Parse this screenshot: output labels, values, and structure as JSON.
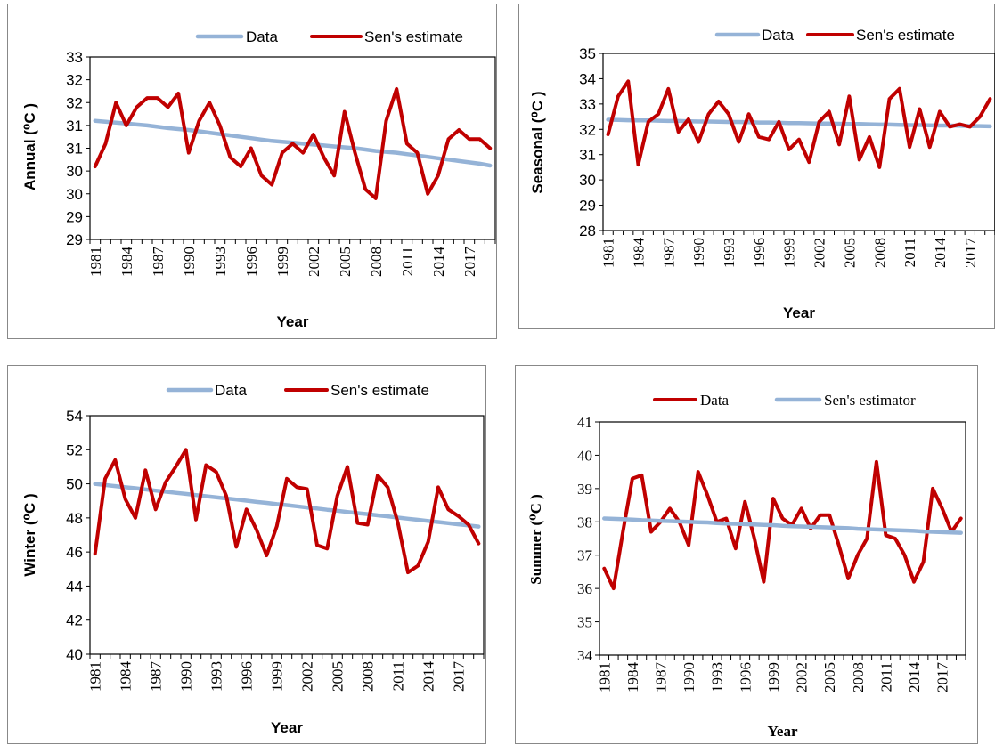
{
  "chart_data": [
    {
      "type": "line",
      "font": "sans",
      "x": [
        1981,
        1982,
        1983,
        1984,
        1985,
        1986,
        1987,
        1988,
        1989,
        1990,
        1991,
        1992,
        1993,
        1994,
        1995,
        1996,
        1997,
        1998,
        1999,
        2000,
        2001,
        2002,
        2003,
        2004,
        2005,
        2006,
        2007,
        2008,
        2009,
        2010,
        2011,
        2012,
        2013,
        2014,
        2015,
        2016,
        2017,
        2018,
        2019
      ],
      "xticks": [
        "1981",
        "1984",
        "1987",
        "1990",
        "1993",
        "1996",
        "1999",
        "2002",
        "2005",
        "2008",
        "2011",
        "2014",
        "2017"
      ],
      "xlabel": "Year",
      "ylabel": "Annual (⁰C )",
      "yticks": [
        "29",
        "29",
        "30",
        "30",
        "31",
        "31",
        "32",
        "32",
        "33"
      ],
      "ylim": [
        29,
        33
      ],
      "grid": false,
      "legend_position": "top",
      "series": [
        {
          "name": "Data",
          "color": "#95b3d7",
          "values": [
            31.6,
            31.58,
            31.56,
            31.54,
            31.52,
            31.5,
            31.47,
            31.44,
            31.42,
            31.4,
            31.37,
            31.34,
            31.31,
            31.28,
            31.25,
            31.22,
            31.19,
            31.16,
            31.14,
            31.12,
            31.1,
            31.08,
            31.06,
            31.04,
            31.02,
            31.0,
            30.97,
            30.94,
            30.92,
            30.9,
            30.87,
            30.84,
            30.81,
            30.78,
            30.75,
            30.72,
            30.69,
            30.66,
            30.62
          ]
        },
        {
          "name": "Sen's estimate",
          "color": "#c00000",
          "values": [
            30.6,
            31.1,
            32.0,
            31.5,
            31.9,
            32.1,
            32.1,
            31.9,
            32.2,
            30.9,
            31.6,
            32.0,
            31.5,
            30.8,
            30.6,
            31.0,
            30.4,
            30.2,
            30.9,
            31.1,
            30.9,
            31.3,
            30.8,
            30.4,
            31.8,
            30.9,
            30.1,
            29.9,
            31.6,
            32.3,
            31.1,
            30.9,
            30.0,
            30.4,
            31.2,
            31.4,
            31.2,
            31.2,
            31.0
          ]
        }
      ]
    },
    {
      "type": "line",
      "font": "sans",
      "x": [
        1981,
        1982,
        1983,
        1984,
        1985,
        1986,
        1987,
        1988,
        1989,
        1990,
        1991,
        1992,
        1993,
        1994,
        1995,
        1996,
        1997,
        1998,
        1999,
        2000,
        2001,
        2002,
        2003,
        2004,
        2005,
        2006,
        2007,
        2008,
        2009,
        2010,
        2011,
        2012,
        2013,
        2014,
        2015,
        2016,
        2017,
        2018,
        2019
      ],
      "xticks": [
        "1981",
        "1984",
        "1987",
        "1990",
        "1993",
        "1996",
        "1999",
        "2002",
        "2005",
        "2008",
        "2011",
        "2014",
        "2017"
      ],
      "xlabel": "Year",
      "ylabel": "Seasonal (⁰C )",
      "yticks": [
        "28",
        "29",
        "30",
        "31",
        "32",
        "33",
        "34",
        "35"
      ],
      "ylim": [
        28,
        35
      ],
      "grid": false,
      "legend_position": "top",
      "series": [
        {
          "name": "Data",
          "color": "#95b3d7",
          "values": [
            32.38,
            32.37,
            32.36,
            32.35,
            32.35,
            32.34,
            32.33,
            32.33,
            32.32,
            32.31,
            32.31,
            32.3,
            32.29,
            32.29,
            32.28,
            32.27,
            32.27,
            32.26,
            32.25,
            32.25,
            32.24,
            32.23,
            32.23,
            32.22,
            32.21,
            32.21,
            32.2,
            32.19,
            32.19,
            32.18,
            32.17,
            32.17,
            32.16,
            32.15,
            32.15,
            32.14,
            32.13,
            32.13,
            32.12
          ]
        },
        {
          "name": "Sen's estimate",
          "color": "#c00000",
          "values": [
            31.8,
            33.3,
            33.9,
            30.6,
            32.3,
            32.6,
            33.6,
            31.9,
            32.4,
            31.5,
            32.6,
            33.1,
            32.6,
            31.5,
            32.6,
            31.7,
            31.6,
            32.3,
            31.2,
            31.6,
            30.7,
            32.3,
            32.7,
            31.4,
            33.3,
            30.8,
            31.7,
            30.5,
            33.2,
            33.6,
            31.3,
            32.8,
            31.3,
            32.7,
            32.1,
            32.2,
            32.1,
            32.5,
            33.2
          ]
        }
      ]
    },
    {
      "type": "line",
      "font": "sans",
      "x": [
        1981,
        1982,
        1983,
        1984,
        1985,
        1986,
        1987,
        1988,
        1989,
        1990,
        1991,
        1992,
        1993,
        1994,
        1995,
        1996,
        1997,
        1998,
        1999,
        2000,
        2001,
        2002,
        2003,
        2004,
        2005,
        2006,
        2007,
        2008,
        2009,
        2010,
        2011,
        2012,
        2013,
        2014,
        2015,
        2016,
        2017,
        2018,
        2019
      ],
      "xticks": [
        "1981",
        "1984",
        "1987",
        "1990",
        "1993",
        "1996",
        "1999",
        "2002",
        "2005",
        "2008",
        "2011",
        "2014",
        "2017"
      ],
      "xlabel": "Year",
      "ylabel": "Winter (⁰C )",
      "yticks": [
        "40",
        "42",
        "44",
        "46",
        "48",
        "50",
        "52",
        "54"
      ],
      "ylim": [
        40,
        54
      ],
      "grid": false,
      "legend_position": "top",
      "series": [
        {
          "name": "Data",
          "color": "#95b3d7",
          "values": [
            50.0,
            49.93,
            49.87,
            49.8,
            49.74,
            49.67,
            49.6,
            49.54,
            49.47,
            49.41,
            49.34,
            49.27,
            49.21,
            49.14,
            49.08,
            49.01,
            48.94,
            48.88,
            48.81,
            48.75,
            48.68,
            48.61,
            48.55,
            48.48,
            48.42,
            48.35,
            48.28,
            48.22,
            48.15,
            48.09,
            48.02,
            47.95,
            47.89,
            47.82,
            47.76,
            47.69,
            47.62,
            47.56,
            47.49
          ]
        },
        {
          "name": "Sen's estimate",
          "color": "#c00000",
          "values": [
            45.9,
            50.3,
            51.4,
            49.1,
            48.0,
            50.8,
            48.5,
            50.1,
            51.0,
            52.0,
            47.9,
            51.1,
            50.7,
            49.3,
            46.3,
            48.5,
            47.3,
            45.8,
            47.5,
            50.3,
            49.8,
            49.7,
            46.4,
            46.2,
            49.3,
            51.0,
            47.7,
            47.6,
            50.5,
            49.8,
            47.7,
            44.8,
            45.2,
            46.6,
            49.8,
            48.5,
            48.1,
            47.6,
            46.5
          ]
        }
      ]
    },
    {
      "type": "line",
      "font": "serif",
      "x": [
        1981,
        1982,
        1983,
        1984,
        1985,
        1986,
        1987,
        1988,
        1989,
        1990,
        1991,
        1992,
        1993,
        1994,
        1995,
        1996,
        1997,
        1998,
        1999,
        2000,
        2001,
        2002,
        2003,
        2004,
        2005,
        2006,
        2007,
        2008,
        2009,
        2010,
        2011,
        2012,
        2013,
        2014,
        2015,
        2016,
        2017,
        2018,
        2019
      ],
      "xticks": [
        "1981",
        "1984",
        "1987",
        "1990",
        "1993",
        "1996",
        "1999",
        "2002",
        "2005",
        "2008",
        "2011",
        "2014",
        "2017"
      ],
      "xlabel": "Year",
      "ylabel": "Summer (⁰C )",
      "yticks": [
        "34",
        "35",
        "36",
        "37",
        "38",
        "39",
        "40",
        "41"
      ],
      "ylim": [
        34,
        41
      ],
      "grid": false,
      "legend_position": "top",
      "series": [
        {
          "name": "Data",
          "color": "#c00000",
          "values": [
            36.6,
            36.0,
            37.7,
            39.3,
            39.4,
            37.7,
            38.0,
            38.4,
            38.0,
            37.3,
            39.5,
            38.8,
            38.0,
            38.1,
            37.2,
            38.6,
            37.5,
            36.2,
            38.7,
            38.1,
            37.9,
            38.4,
            37.8,
            38.2,
            38.2,
            37.3,
            36.3,
            37.0,
            37.5,
            39.8,
            37.6,
            37.5,
            37.0,
            36.2,
            36.8,
            39.0,
            38.4,
            37.7,
            38.1
          ]
        },
        {
          "name": "Sen's estimator",
          "color": "#95b3d7",
          "values": [
            38.1,
            38.09,
            38.08,
            38.07,
            38.05,
            38.04,
            38.03,
            38.02,
            38.01,
            38.0,
            37.99,
            37.98,
            37.96,
            37.95,
            37.94,
            37.93,
            37.92,
            37.91,
            37.9,
            37.88,
            37.87,
            37.86,
            37.85,
            37.84,
            37.83,
            37.82,
            37.81,
            37.79,
            37.78,
            37.77,
            37.76,
            37.75,
            37.74,
            37.73,
            37.71,
            37.7,
            37.69,
            37.68,
            37.67
          ]
        }
      ]
    }
  ]
}
